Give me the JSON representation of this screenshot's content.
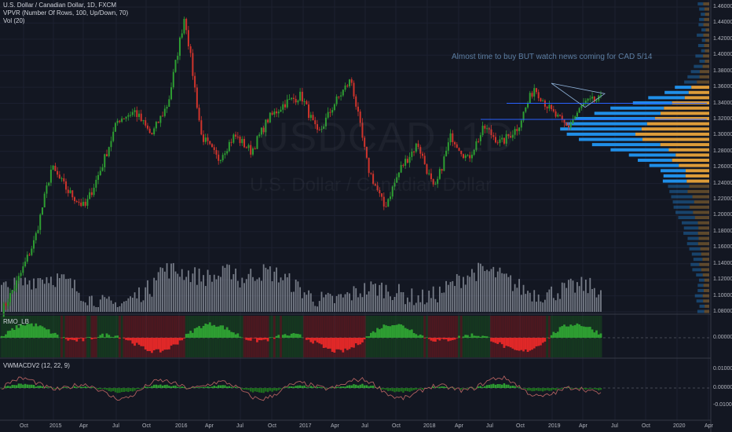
{
  "legend": {
    "symbol": "U.S. Dollar / Canadian Dollar, 1D, FXCM",
    "vpvr": "VPVR (Number Of Rows, 100, Up/Down, 70)",
    "volume": "Vol (20)"
  },
  "annotation": "Almost time to buy BUT watch news coming for CAD 5/14",
  "watermark": {
    "ticker": "USDCAD, 1D",
    "name": "U.S. Dollar / Canadian Dollar"
  },
  "panes": {
    "rmo": "RMO_LB",
    "vwmacd": "VWMACDV2 (12, 22, 9)"
  },
  "colors": {
    "background": "#131722",
    "up": "#26a69a",
    "down": "#ef5350",
    "candle_up": "#2e9e32",
    "candle_down": "#d0342c",
    "vpvr_up": "#2196f3",
    "vpvr_down": "#e8a33b",
    "volume": "#aab0bd",
    "rmo_up": "#1e7e1e",
    "rmo_down": "#c81e1e",
    "macd": "#b0605f"
  },
  "price_axis": [
    "1.46000",
    "1.44000",
    "1.42000",
    "1.40000",
    "1.38000",
    "1.36000",
    "1.34000",
    "1.32000",
    "1.30000",
    "1.28000",
    "1.26000",
    "1.24000",
    "1.22000",
    "1.20000",
    "1.18000",
    "1.16000",
    "1.14000",
    "1.12000",
    "1.10000",
    "1.08000"
  ],
  "rmo_axis": [
    "0.00000"
  ],
  "macd_axis": [
    "0.01000",
    "0.00000",
    "-0.01000"
  ],
  "time_axis": [
    "Oct",
    "2015",
    "Apr",
    "Jul",
    "Oct",
    "2016",
    "Apr",
    "Jul",
    "Oct",
    "2017",
    "Apr",
    "Jul",
    "Oct",
    "2018",
    "Apr",
    "Jul",
    "Oct",
    "2019",
    "Apr",
    "Jul",
    "Oct",
    "2020",
    "Apr"
  ],
  "chart_data": {
    "type": "line",
    "title": "U.S. Dollar / Canadian Dollar, 1D, FXCM",
    "x": [
      "2014-08",
      "2014-10",
      "2015-01",
      "2015-03",
      "2015-04",
      "2015-05",
      "2015-07",
      "2015-08",
      "2015-09",
      "2015-10",
      "2015-11",
      "2016-01",
      "2016-03",
      "2016-05",
      "2016-06",
      "2016-08",
      "2016-09",
      "2016-10",
      "2016-12",
      "2017-01",
      "2017-03",
      "2017-05",
      "2017-07",
      "2017-09",
      "2017-10",
      "2017-12",
      "2018-01",
      "2018-03",
      "2018-05",
      "2018-07",
      "2018-09",
      "2018-10",
      "2018-12",
      "2019-01",
      "2019-02",
      "2019-03",
      "2019-05"
    ],
    "close": [
      1.08,
      1.12,
      1.17,
      1.26,
      1.23,
      1.21,
      1.26,
      1.32,
      1.33,
      1.3,
      1.34,
      1.45,
      1.3,
      1.27,
      1.3,
      1.28,
      1.32,
      1.34,
      1.35,
      1.3,
      1.34,
      1.37,
      1.26,
      1.21,
      1.26,
      1.29,
      1.23,
      1.3,
      1.27,
      1.31,
      1.29,
      1.31,
      1.36,
      1.33,
      1.31,
      1.34,
      1.345
    ],
    "ylim": [
      1.08,
      1.47
    ],
    "vpvr_levels": [
      1.08,
      1.47
    ],
    "horizontal_lines": [
      1.34,
      1.32
    ],
    "indicators": [
      "VPVR (Number Of Rows, 100, Up/Down, 70)",
      "Vol (20)",
      "RMO_LB",
      "VWMACDV2 (12, 22, 9)"
    ]
  }
}
